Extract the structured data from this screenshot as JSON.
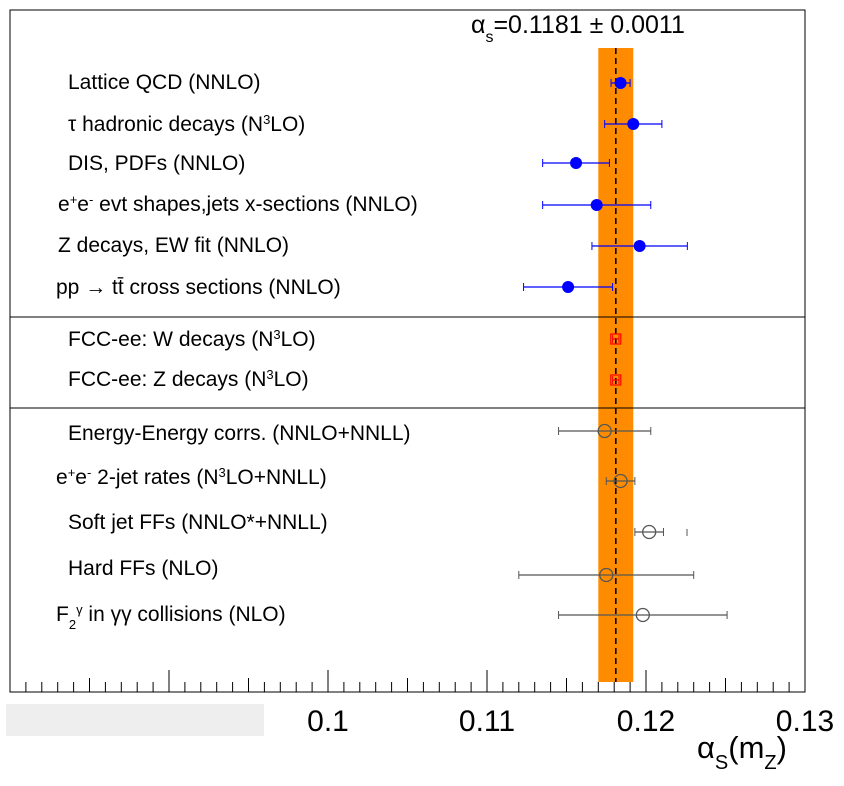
{
  "chart_data": {
    "type": "scatter",
    "orientation": "horizontal-errorbars",
    "title": "αs=0.1181 ± 0.0011",
    "xlabel": "αS(mZ)",
    "xlim": [
      0.08,
      0.13
    ],
    "x_ticks": [
      "0.1",
      "0.11",
      "0.12",
      "0.13"
    ],
    "world_average": {
      "value": 0.1181,
      "uncertainty": 0.0011,
      "band_color": "#ff8c00"
    },
    "groups": [
      {
        "marker": "filled-circle",
        "color": "#0000ff",
        "points": [
          {
            "label": "Lattice QCD (NNLO)",
            "value": 0.1184,
            "err_lo": 0.0006,
            "err_hi": 0.0006
          },
          {
            "label": "τ hadronic decays (N3LO)",
            "value": 0.1192,
            "err_lo": 0.0018,
            "err_hi": 0.0018
          },
          {
            "label": "DIS, PDFs (NNLO)",
            "value": 0.1156,
            "err_lo": 0.0021,
            "err_hi": 0.0021
          },
          {
            "label": "e+e- evt shapes,jets x-sections (NNLO)",
            "value": 0.1169,
            "err_lo": 0.0034,
            "err_hi": 0.0034
          },
          {
            "label": "Z decays, EW fit (NNLO)",
            "value": 0.1196,
            "err_lo": 0.003,
            "err_hi": 0.003
          },
          {
            "label": "pp → tt cross sections (NNLO)",
            "value": 0.1151,
            "err_lo": 0.0028,
            "err_hi": 0.0028
          }
        ]
      },
      {
        "marker": "open-square",
        "color": "#ff0000",
        "points": [
          {
            "label": "FCC-ee: W decays (N3LO)",
            "value": 0.1181,
            "err_lo": 0.0002,
            "err_hi": 0.0002
          },
          {
            "label": "FCC-ee: Z decays (N3LO)",
            "value": 0.1181,
            "err_lo": 0.0002,
            "err_hi": 0.0002
          }
        ]
      },
      {
        "marker": "open-circle",
        "color": "#555555",
        "points": [
          {
            "label": "Energy-Energy corrs. (NNLO+NNLL)",
            "value": 0.1174,
            "err_lo": 0.0029,
            "err_hi": 0.0029
          },
          {
            "label": "e+e- 2-jet rates (N3LO+NNLL)",
            "value": 0.1184,
            "err_lo": 0.0009,
            "err_hi": 0.0009
          },
          {
            "label": "Soft jet FFs (NNLO*+NNLL)",
            "value": 0.1202,
            "err_lo": 0.0009,
            "err_hi": 0.0009
          },
          {
            "label": "Hard FFs (NLO)",
            "value": 0.1175,
            "err_lo": 0.0055,
            "err_hi": 0.0055
          },
          {
            "label": "F2γ in γγ collisions (NLO)",
            "value": 0.1198,
            "err_lo": 0.0053,
            "err_hi": 0.0053
          }
        ]
      }
    ]
  }
}
